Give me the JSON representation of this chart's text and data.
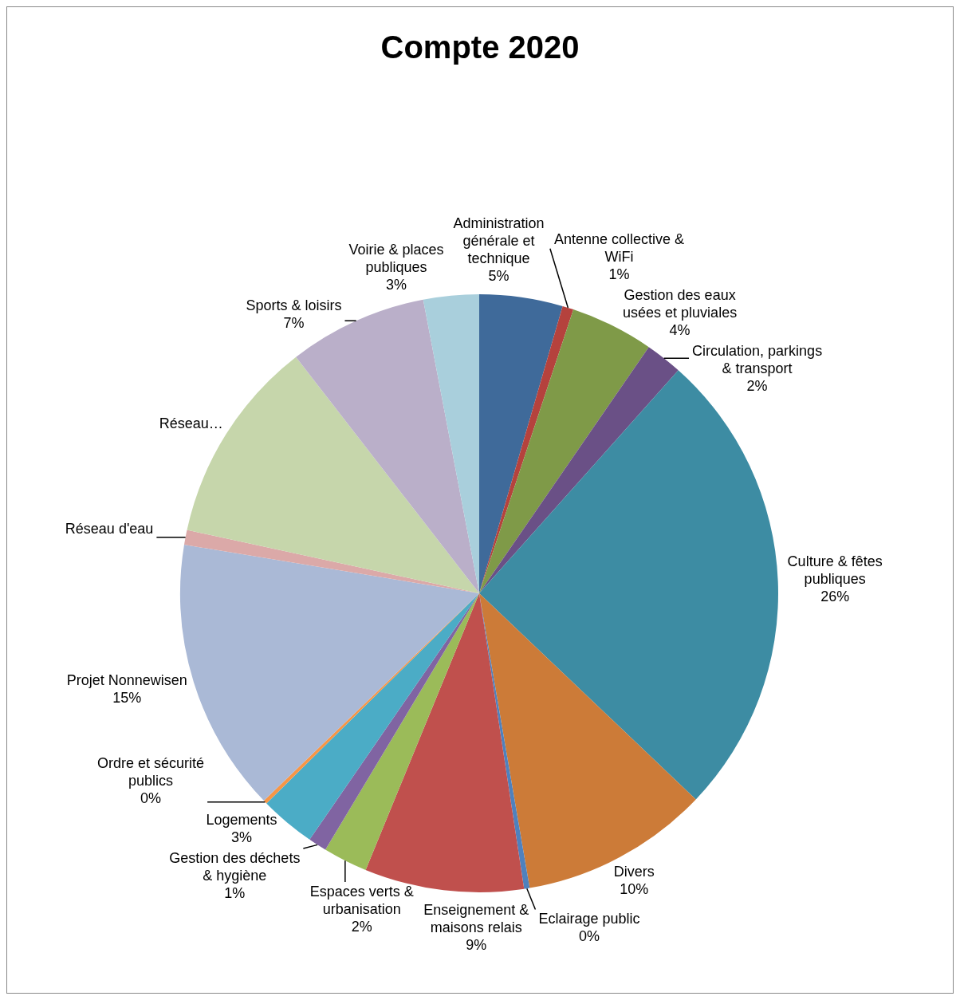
{
  "chart_data": {
    "type": "pie",
    "title": "Compte 2020",
    "categories": [
      "Administration générale et technique",
      "Antenne collective & WiFi",
      "Gestion des eaux usées et pluviales",
      "Circulation, parkings & transport",
      "Culture & fêtes publiques",
      "Divers",
      "Eclairage public",
      "Enseignement & maisons relais",
      "Espaces verts & urbanisation",
      "Gestion des déchets & hygiène",
      "Logements",
      "Ordre et sécurité publics",
      "Projet Nonnewisen",
      "Réseau d'eau",
      "Réseau…",
      "Sports & loisirs",
      "Voirie & places publiques"
    ],
    "values": [
      4.5,
      0.6,
      4.5,
      2.0,
      25.5,
      10.2,
      0.3,
      8.6,
      2.4,
      1.0,
      3.0,
      0.2,
      14.8,
      0.8,
      11.1,
      7.5,
      3.0
    ],
    "colors": [
      "#3f6a9a",
      "#b5423d",
      "#7f9a48",
      "#6a5086",
      "#3d8ca3",
      "#cc7b38",
      "#4f81bd",
      "#c0504d",
      "#9bbb59",
      "#8064a2",
      "#4bacc6",
      "#f79646",
      "#aab9d6",
      "#dba9a8",
      "#c6d6ab",
      "#baafc9",
      "#a9cfdc"
    ],
    "value_labels": [
      "5%",
      "1%",
      "4%",
      "2%",
      "26%",
      "10%",
      "0%",
      "9%",
      "2%",
      "1%",
      "3%",
      "0%",
      "15%",
      null,
      null,
      "7%",
      "3%"
    ],
    "legend": false
  }
}
